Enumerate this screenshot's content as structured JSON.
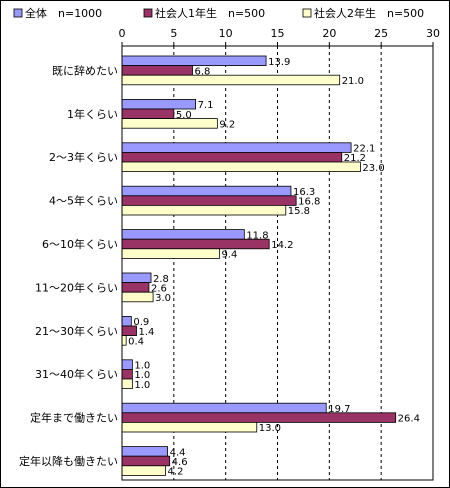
{
  "chart_data": {
    "type": "bar",
    "orientation": "horizontal",
    "categories": [
      "既に辞めたい",
      "1年くらい",
      "2～3年くらい",
      "4～5年くらい",
      "6～10年くらい",
      "11～20年くらい",
      "21～30年くらい",
      "31～40年くらい",
      "定年まで働きたい",
      "定年以降も働きたい"
    ],
    "series": [
      {
        "name": "全体　n=1000",
        "color": "#9999ff",
        "values": [
          13.9,
          7.1,
          22.1,
          16.3,
          11.8,
          2.8,
          0.9,
          1.0,
          19.7,
          4.4
        ],
        "labels": [
          "13.9",
          "7.1",
          "22.1",
          "16.3",
          "11.8",
          "2.8",
          "0.9",
          "1.0",
          "19.7",
          "4.4"
        ]
      },
      {
        "name": "社会人1年生　n=500",
        "color": "#993366",
        "values": [
          6.8,
          5.0,
          21.2,
          16.8,
          14.2,
          2.6,
          1.4,
          1.0,
          26.4,
          4.6
        ],
        "labels": [
          "6.8",
          "5.0",
          "21.2",
          "16.8",
          "14.2",
          "2.6",
          "1.4",
          "1.0",
          "26.4",
          "4.6"
        ]
      },
      {
        "name": "社会人2年生　n=500",
        "color": "#ffffcc",
        "values": [
          21.0,
          9.2,
          23.0,
          15.8,
          9.4,
          3.0,
          0.4,
          1.0,
          13.0,
          4.2
        ],
        "labels": [
          "21.0",
          "9.2",
          "23.0",
          "15.8",
          "9.4",
          "3.0",
          "0.4",
          "1.0",
          "13.0",
          "4.2"
        ]
      }
    ],
    "xlim": [
      0,
      30
    ],
    "xticks": [
      "0",
      "5",
      "10",
      "15",
      "20",
      "25",
      "30"
    ],
    "grid": "vertical dashed",
    "legend_position": "top"
  }
}
